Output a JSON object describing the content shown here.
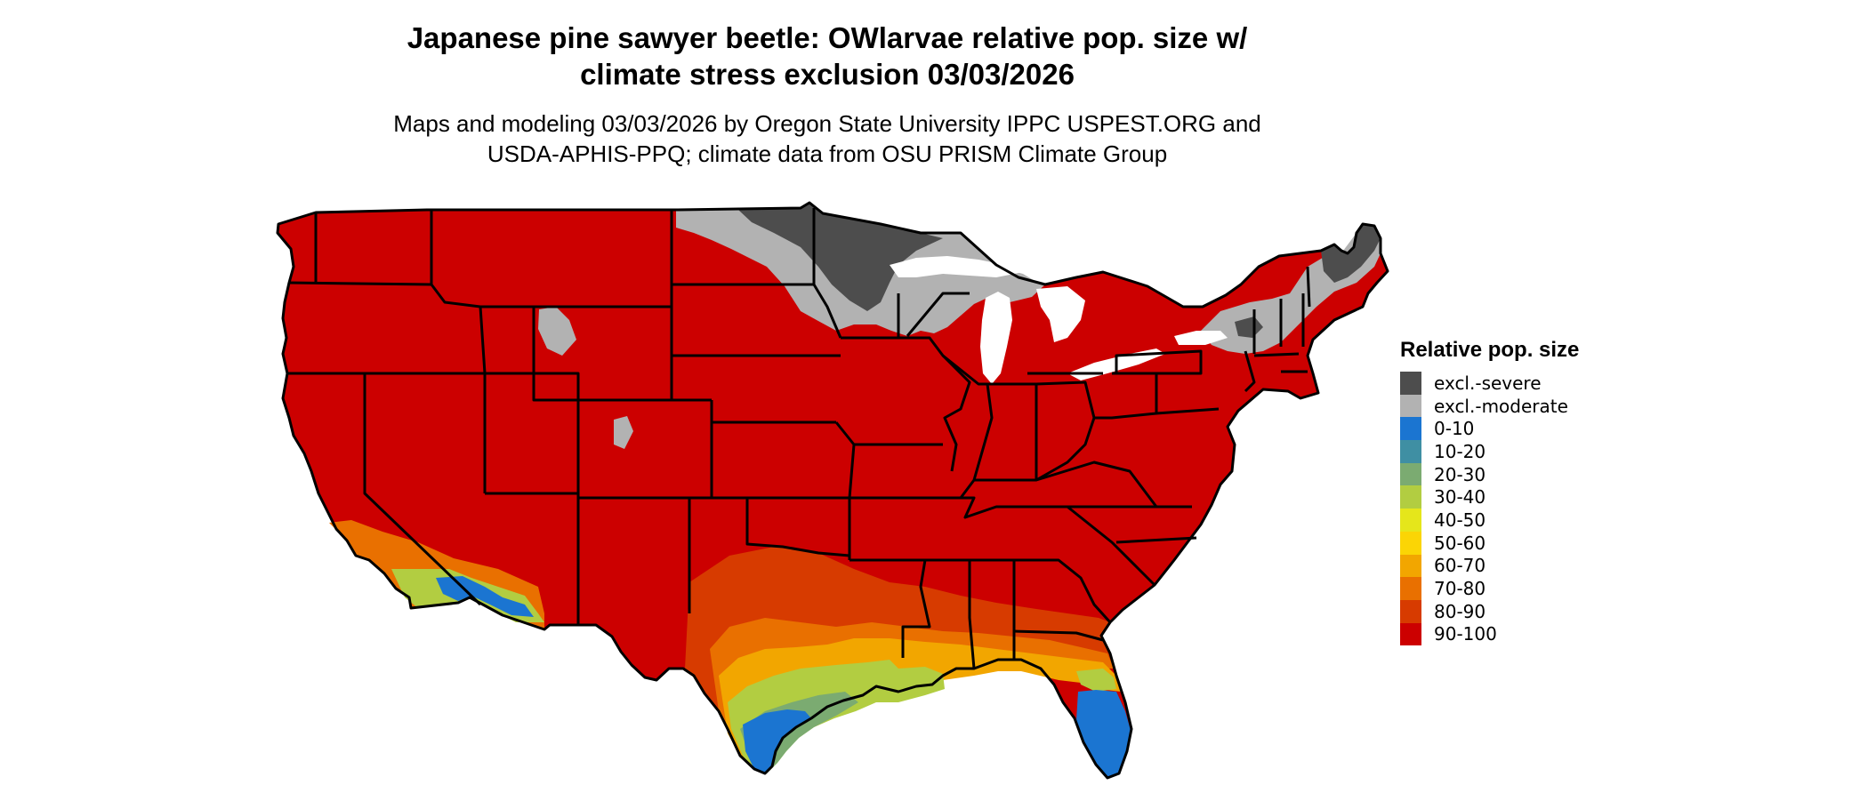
{
  "title_line1": "Japanese pine sawyer beetle: OWlarvae relative pop. size w/",
  "title_line2": "climate stress exclusion 03/03/2026",
  "subtitle_line1": "Maps and modeling 03/03/2026 by Oregon State University IPPC USPEST.ORG and",
  "subtitle_line2": "USDA-APHIS-PPQ; climate data from OSU PRISM Climate Group",
  "legend": {
    "title": "Relative pop. size",
    "items": [
      {
        "label": "excl.-severe",
        "color": "#4d4d4d"
      },
      {
        "label": "excl.-moderate",
        "color": "#b2b2b2"
      },
      {
        "label": "0-10",
        "color": "#1b75d1"
      },
      {
        "label": "10-20",
        "color": "#3f8fa3"
      },
      {
        "label": "20-30",
        "color": "#7bab71"
      },
      {
        "label": "30-40",
        "color": "#b2cd41"
      },
      {
        "label": "40-50",
        "color": "#e5e61b"
      },
      {
        "label": "50-60",
        "color": "#fbd505"
      },
      {
        "label": "60-70",
        "color": "#f2a600"
      },
      {
        "label": "70-80",
        "color": "#e97000"
      },
      {
        "label": "80-90",
        "color": "#d73b00"
      },
      {
        "label": "90-100",
        "color": "#cc0000"
      }
    ]
  }
}
